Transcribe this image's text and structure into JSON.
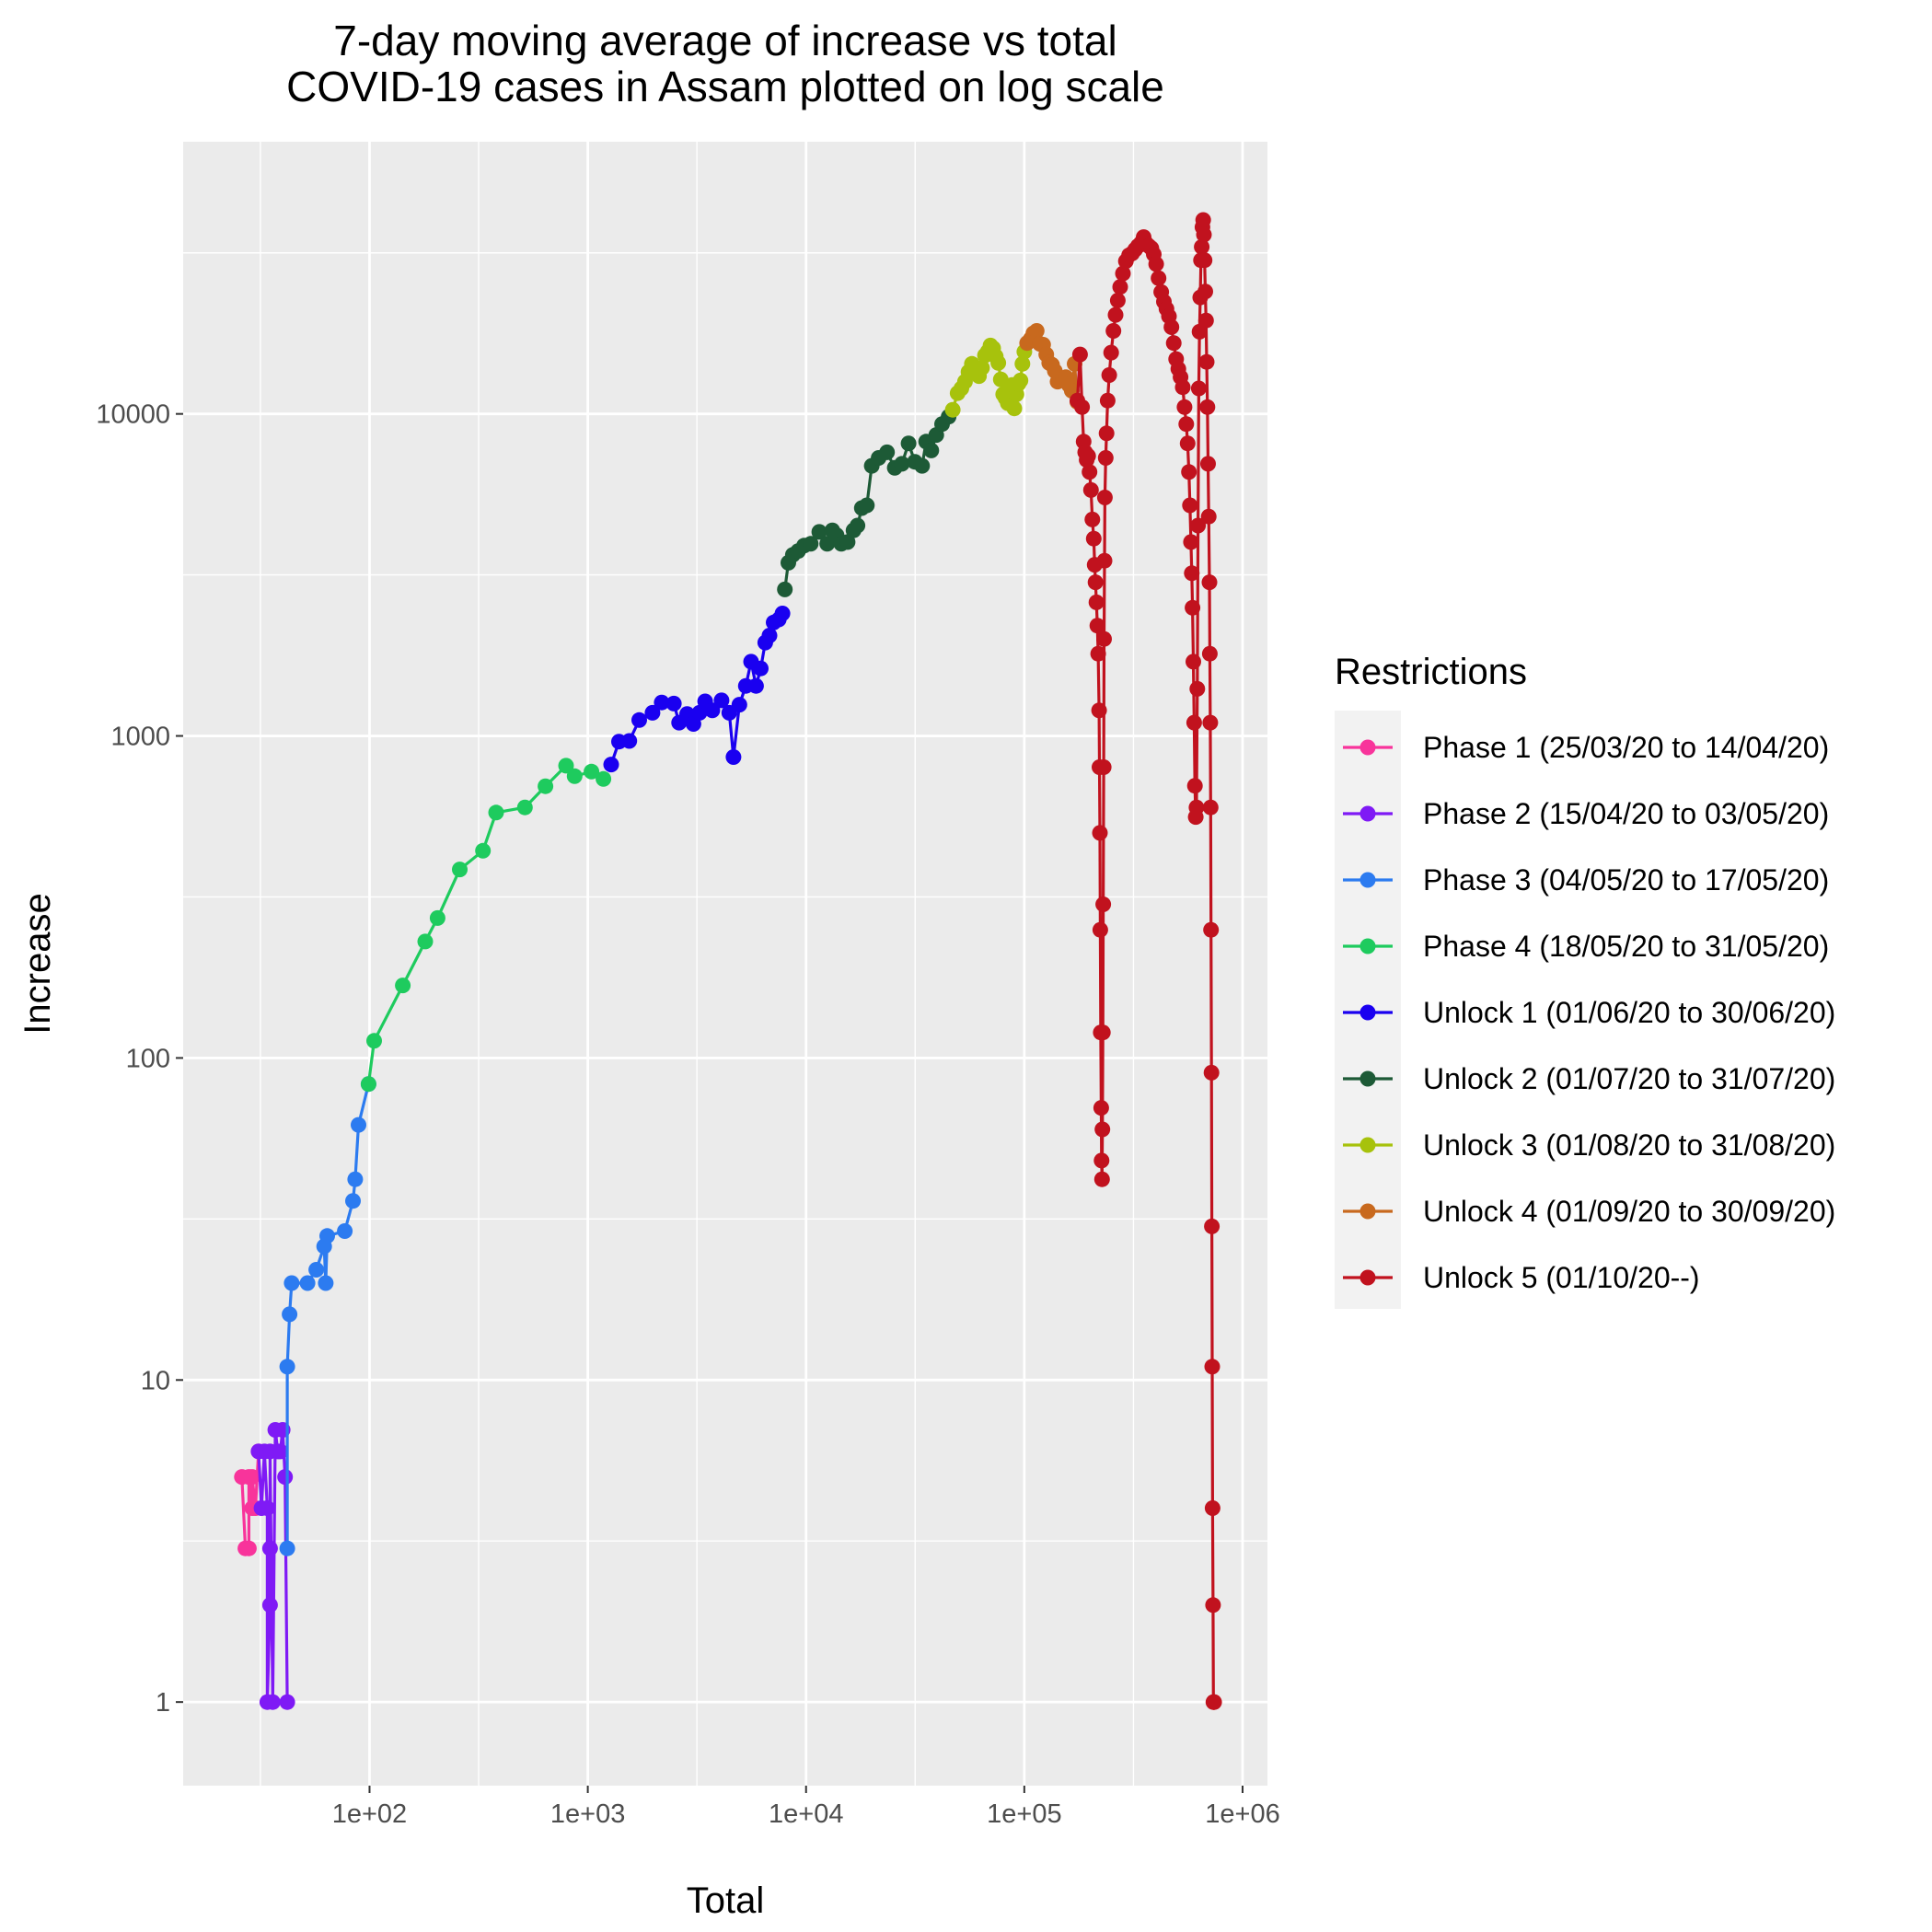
{
  "chart_data": {
    "type": "line",
    "title": [
      "7-day moving average of increase vs total",
      "COVID-19 cases in Assam plotted on log scale"
    ],
    "xlabel": "Total",
    "ylabel": "Increase",
    "x_scale": "log10",
    "y_scale": "log10",
    "xlim": [
      14,
      1300000
    ],
    "ylim": [
      0.55,
      70000
    ],
    "x_ticks": [
      {
        "value": 100,
        "label": "1e+02"
      },
      {
        "value": 1000,
        "label": "1e+03"
      },
      {
        "value": 10000,
        "label": "1e+04"
      },
      {
        "value": 100000,
        "label": "1e+05"
      },
      {
        "value": 1000000,
        "label": "1e+06"
      }
    ],
    "y_ticks": [
      {
        "value": 1,
        "label": "1"
      },
      {
        "value": 10,
        "label": "10"
      },
      {
        "value": 100,
        "label": "100"
      },
      {
        "value": 1000,
        "label": "1000"
      },
      {
        "value": 10000,
        "label": "10000"
      }
    ],
    "grid": true,
    "legend": {
      "title": "Restrictions",
      "position": "right"
    },
    "series": [
      {
        "name": "Phase 1 (25/03/20 to 14/04/20)",
        "color": "#F8349B",
        "points": [
          [
            26,
            5
          ],
          [
            27,
            3
          ],
          [
            28,
            3
          ],
          [
            28,
            5
          ],
          [
            29,
            4
          ],
          [
            29,
            5
          ],
          [
            30,
            4
          ],
          [
            31,
            6
          ]
        ]
      },
      {
        "name": "Phase 2 (15/04/20 to 03/05/20)",
        "color": "#7F1AF5",
        "points": [
          [
            31,
            6
          ],
          [
            32,
            4
          ],
          [
            33,
            6
          ],
          [
            34,
            4
          ],
          [
            34,
            1
          ],
          [
            35,
            2
          ],
          [
            35,
            3
          ],
          [
            35,
            6
          ],
          [
            36,
            1
          ],
          [
            37,
            7
          ],
          [
            38,
            6
          ],
          [
            39,
            6
          ],
          [
            40,
            7
          ],
          [
            41,
            5
          ],
          [
            42,
            1
          ]
        ]
      },
      {
        "name": "Phase 3 (04/05/20 to 17/05/20)",
        "color": "#2C7BF0",
        "points": [
          [
            42,
            3
          ],
          [
            42,
            11
          ],
          [
            43,
            16
          ],
          [
            44,
            20
          ],
          [
            52,
            20
          ],
          [
            57,
            22
          ],
          [
            62,
            26
          ],
          [
            63,
            20
          ],
          [
            64,
            28
          ],
          [
            77,
            29
          ],
          [
            84,
            36
          ],
          [
            86,
            42
          ],
          [
            89,
            62
          ],
          [
            99,
            83
          ]
        ]
      },
      {
        "name": "Phase 4 (18/05/20 to 31/05/20)",
        "color": "#1ECB5E",
        "points": [
          [
            99,
            83
          ],
          [
            105,
            113
          ],
          [
            142,
            168
          ],
          [
            180,
            230
          ],
          [
            205,
            272
          ],
          [
            259,
            385
          ],
          [
            331,
            440
          ],
          [
            380,
            578
          ],
          [
            515,
            600
          ],
          [
            640,
            698
          ],
          [
            795,
            808
          ],
          [
            870,
            750
          ],
          [
            1040,
            775
          ],
          [
            1180,
            735
          ]
        ]
      },
      {
        "name": "Unlock 1 (01/06/20 to 30/06/20)",
        "color": "#1A00F0",
        "points": [
          [
            1280,
            815
          ],
          [
            1390,
            960
          ],
          [
            1550,
            965
          ],
          [
            1720,
            1120
          ],
          [
            1980,
            1180
          ],
          [
            2180,
            1270
          ],
          [
            2480,
            1260
          ],
          [
            2620,
            1100
          ],
          [
            2850,
            1170
          ],
          [
            3050,
            1090
          ],
          [
            3250,
            1180
          ],
          [
            3450,
            1280
          ],
          [
            3720,
            1200
          ],
          [
            4100,
            1290
          ],
          [
            4450,
            1180
          ],
          [
            4650,
            860
          ],
          [
            4950,
            1250
          ],
          [
            5300,
            1430
          ],
          [
            5600,
            1700
          ],
          [
            5900,
            1430
          ],
          [
            6200,
            1620
          ],
          [
            6500,
            1950
          ],
          [
            6800,
            2050
          ],
          [
            7100,
            2250
          ],
          [
            7500,
            2300
          ],
          [
            7800,
            2400
          ]
        ]
      },
      {
        "name": "Unlock 2 (01/07/20 to 31/07/20)",
        "color": "#1D5A36",
        "points": [
          [
            8000,
            2850
          ],
          [
            8300,
            3450
          ],
          [
            8700,
            3650
          ],
          [
            9200,
            3750
          ],
          [
            9800,
            3900
          ],
          [
            10500,
            3950
          ],
          [
            11500,
            4300
          ],
          [
            12500,
            3950
          ],
          [
            13200,
            4350
          ],
          [
            13800,
            4200
          ],
          [
            14500,
            3950
          ],
          [
            15500,
            4000
          ],
          [
            16500,
            4350
          ],
          [
            17200,
            4500
          ],
          [
            18000,
            5100
          ],
          [
            19000,
            5200
          ],
          [
            20000,
            6900
          ],
          [
            21500,
            7300
          ],
          [
            23500,
            7600
          ],
          [
            25500,
            6800
          ],
          [
            27500,
            7000
          ],
          [
            29500,
            8100
          ],
          [
            31500,
            7100
          ],
          [
            34000,
            6900
          ],
          [
            35500,
            8200
          ],
          [
            37500,
            7700
          ],
          [
            39500,
            8600
          ],
          [
            42000,
            9300
          ],
          [
            45000,
            9800
          ]
        ]
      },
      {
        "name": "Unlock 3 (01/08/20 to 31/08/20)",
        "color": "#A7C20C",
        "points": [
          [
            47000,
            10300
          ],
          [
            49500,
            11600
          ],
          [
            51500,
            12000
          ],
          [
            53500,
            12600
          ],
          [
            55500,
            13500
          ],
          [
            57500,
            14300
          ],
          [
            60000,
            13600
          ],
          [
            62000,
            13100
          ],
          [
            64000,
            13900
          ],
          [
            66000,
            15200
          ],
          [
            68000,
            15600
          ],
          [
            70000,
            16300
          ],
          [
            72000,
            16000
          ],
          [
            74000,
            15100
          ],
          [
            76000,
            14400
          ],
          [
            78000,
            12800
          ],
          [
            80000,
            11500
          ],
          [
            82000,
            11200
          ],
          [
            84000,
            10800
          ],
          [
            86000,
            11800
          ],
          [
            88000,
            12300
          ],
          [
            90000,
            10400
          ],
          [
            92000,
            11500
          ],
          [
            94000,
            12400
          ],
          [
            96000,
            12700
          ],
          [
            98000,
            14300
          ],
          [
            100000,
            15600
          ]
        ]
      },
      {
        "name": "Unlock 4 (01/09/20 to 30/09/20)",
        "color": "#C8691E",
        "points": [
          [
            103000,
            16600
          ],
          [
            107000,
            17100
          ],
          [
            110000,
            17800
          ],
          [
            114000,
            18100
          ],
          [
            118000,
            16500
          ],
          [
            122000,
            16400
          ],
          [
            126000,
            15300
          ],
          [
            130000,
            14400
          ],
          [
            134000,
            14200
          ],
          [
            138000,
            13600
          ],
          [
            142000,
            12600
          ],
          [
            146000,
            12900
          ],
          [
            150000,
            12800
          ],
          [
            155000,
            13000
          ],
          [
            160000,
            12300
          ],
          [
            165000,
            11800
          ],
          [
            170000,
            14300
          ],
          [
            175000,
            10900
          ]
        ]
      },
      {
        "name": "Unlock 5 (01/10/20--)",
        "color": "#C1121E",
        "points": [
          [
            175000,
            11000
          ],
          [
            180000,
            15300
          ],
          [
            184000,
            10500
          ],
          [
            187000,
            8200
          ],
          [
            190000,
            7600
          ],
          [
            193000,
            7200
          ],
          [
            196000,
            7400
          ],
          [
            199000,
            6600
          ],
          [
            202000,
            5800
          ],
          [
            205000,
            4700
          ],
          [
            208000,
            4100
          ],
          [
            210000,
            3400
          ],
          [
            212000,
            3000
          ],
          [
            214000,
            2600
          ],
          [
            216000,
            2200
          ],
          [
            218000,
            1800
          ],
          [
            220000,
            1200
          ],
          [
            221000,
            800
          ],
          [
            222000,
            500
          ],
          [
            223000,
            250
          ],
          [
            224000,
            120
          ],
          [
            225000,
            70
          ],
          [
            226000,
            48
          ],
          [
            227000,
            42
          ],
          [
            228000,
            60
          ],
          [
            229000,
            120
          ],
          [
            230000,
            300
          ],
          [
            231000,
            800
          ],
          [
            232000,
            2000
          ],
          [
            233000,
            3500
          ],
          [
            234000,
            5500
          ],
          [
            236000,
            7300
          ],
          [
            238000,
            8700
          ],
          [
            241000,
            11000
          ],
          [
            245000,
            13200
          ],
          [
            250000,
            15500
          ],
          [
            256000,
            18100
          ],
          [
            262000,
            20300
          ],
          [
            268000,
            22500
          ],
          [
            275000,
            24800
          ],
          [
            283000,
            27300
          ],
          [
            292000,
            29800
          ],
          [
            302000,
            31100
          ],
          [
            312000,
            31500
          ],
          [
            322000,
            32400
          ],
          [
            332000,
            33200
          ],
          [
            342000,
            33900
          ],
          [
            352000,
            35400
          ],
          [
            362000,
            33800
          ],
          [
            372000,
            33200
          ],
          [
            382000,
            32700
          ],
          [
            392000,
            31300
          ],
          [
            402000,
            29200
          ],
          [
            412000,
            26400
          ],
          [
            424000,
            23900
          ],
          [
            436000,
            22300
          ],
          [
            448000,
            21200
          ],
          [
            460000,
            20100
          ],
          [
            472000,
            18600
          ],
          [
            484000,
            16600
          ],
          [
            496000,
            14800
          ],
          [
            508000,
            13800
          ],
          [
            520000,
            13000
          ],
          [
            532000,
            12100
          ],
          [
            542000,
            10500
          ],
          [
            552000,
            9300
          ],
          [
            560000,
            8100
          ],
          [
            568000,
            6600
          ],
          [
            574000,
            5200
          ],
          [
            580000,
            4000
          ],
          [
            585000,
            3200
          ],
          [
            590000,
            2500
          ],
          [
            595000,
            1700
          ],
          [
            600000,
            1100
          ],
          [
            605000,
            700
          ],
          [
            610000,
            560
          ],
          [
            615000,
            600
          ],
          [
            620000,
            1400
          ],
          [
            625000,
            4500
          ],
          [
            630000,
            12000
          ],
          [
            635000,
            18000
          ],
          [
            640000,
            23000
          ],
          [
            645000,
            30000
          ],
          [
            650000,
            33000
          ],
          [
            655000,
            38000
          ],
          [
            660000,
            40000
          ],
          [
            665000,
            36000
          ],
          [
            670000,
            30000
          ],
          [
            675000,
            24000
          ],
          [
            680000,
            19500
          ],
          [
            685000,
            14500
          ],
          [
            690000,
            10500
          ],
          [
            695000,
            7000
          ],
          [
            700000,
            4800
          ],
          [
            705000,
            3000
          ],
          [
            708000,
            1800
          ],
          [
            711000,
            1100
          ],
          [
            714000,
            600
          ],
          [
            717000,
            250
          ],
          [
            720000,
            90
          ],
          [
            723000,
            30
          ],
          [
            726000,
            11
          ],
          [
            729000,
            4
          ],
          [
            732000,
            2
          ],
          [
            735000,
            1
          ],
          [
            738000,
            1
          ],
          [
            741000,
            1
          ]
        ]
      }
    ]
  }
}
